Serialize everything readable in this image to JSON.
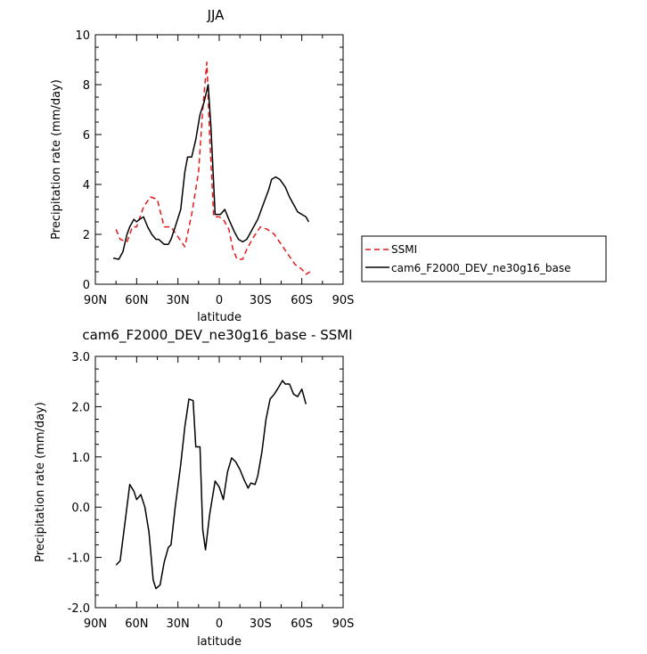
{
  "chart_data": [
    {
      "type": "line",
      "title": "JJA",
      "xlabel": "latitude",
      "ylabel": "Precipitation rate (mm/day)",
      "xlim": [
        90,
        -90
      ],
      "ylim": [
        0,
        10
      ],
      "x_ticks": [
        90,
        60,
        30,
        0,
        -30,
        -60,
        -90
      ],
      "x_tick_labels": [
        "90N",
        "60N",
        "30N",
        "0",
        "30S",
        "60S",
        "90S"
      ],
      "y_ticks": [
        0,
        2,
        4,
        6,
        8,
        10
      ],
      "y_tick_labels": [
        "0",
        "2",
        "4",
        "6",
        "8",
        "10"
      ],
      "grid": false,
      "legend_position": "right",
      "series": [
        {
          "name": "SSMI",
          "color": "#e31a1c",
          "dash": "dashed",
          "points": [
            [
              75,
              2.2
            ],
            [
              72,
              1.8
            ],
            [
              67,
              1.7
            ],
            [
              63,
              2.3
            ],
            [
              60,
              2.3
            ],
            [
              55,
              3.1
            ],
            [
              50,
              3.5
            ],
            [
              45,
              3.4
            ],
            [
              40,
              2.3
            ],
            [
              35,
              2.3
            ],
            [
              30,
              1.9
            ],
            [
              25,
              1.5
            ],
            [
              20,
              2.8
            ],
            [
              15,
              4.5
            ],
            [
              12,
              7.0
            ],
            [
              9,
              8.9
            ],
            [
              7,
              6.0
            ],
            [
              4,
              2.7
            ],
            [
              0,
              2.7
            ],
            [
              -3,
              2.6
            ],
            [
              -7,
              2.2
            ],
            [
              -10,
              1.4
            ],
            [
              -13,
              1.0
            ],
            [
              -17,
              1.0
            ],
            [
              -20,
              1.4
            ],
            [
              -25,
              1.9
            ],
            [
              -30,
              2.3
            ],
            [
              -35,
              2.2
            ],
            [
              -40,
              2.0
            ],
            [
              -45,
              1.6
            ],
            [
              -50,
              1.2
            ],
            [
              -55,
              0.8
            ],
            [
              -60,
              0.6
            ],
            [
              -63,
              0.4
            ],
            [
              -66,
              0.5
            ]
          ]
        },
        {
          "name": "cam6_F2000_DEV_ne30g16_base",
          "color": "#000000",
          "dash": "solid",
          "points": [
            [
              77,
              1.05
            ],
            [
              73,
              1.0
            ],
            [
              70,
              1.3
            ],
            [
              67,
              2.0
            ],
            [
              65,
              2.3
            ],
            [
              62,
              2.6
            ],
            [
              60,
              2.5
            ],
            [
              58,
              2.6
            ],
            [
              55,
              2.7
            ],
            [
              52,
              2.3
            ],
            [
              49,
              2.0
            ],
            [
              46,
              1.8
            ],
            [
              44,
              1.8
            ],
            [
              40,
              1.6
            ],
            [
              37,
              1.6
            ],
            [
              35,
              1.8
            ],
            [
              32,
              2.3
            ],
            [
              28,
              3.0
            ],
            [
              25,
              4.5
            ],
            [
              23,
              5.1
            ],
            [
              20,
              5.1
            ],
            [
              17,
              5.8
            ],
            [
              14,
              6.8
            ],
            [
              11,
              7.3
            ],
            [
              8,
              8.0
            ],
            [
              6,
              6.3
            ],
            [
              3,
              2.8
            ],
            [
              -1,
              2.8
            ],
            [
              -4,
              3.0
            ],
            [
              -7,
              2.6
            ],
            [
              -11,
              2.1
            ],
            [
              -14,
              1.8
            ],
            [
              -17,
              1.7
            ],
            [
              -20,
              1.8
            ],
            [
              -24,
              2.2
            ],
            [
              -28,
              2.6
            ],
            [
              -32,
              3.2
            ],
            [
              -36,
              3.8
            ],
            [
              -38,
              4.2
            ],
            [
              -41,
              4.3
            ],
            [
              -44,
              4.2
            ],
            [
              -48,
              3.9
            ],
            [
              -51,
              3.5
            ],
            [
              -54,
              3.2
            ],
            [
              -57,
              2.9
            ],
            [
              -60,
              2.8
            ],
            [
              -63,
              2.7
            ],
            [
              -65,
              2.5
            ]
          ]
        }
      ]
    },
    {
      "type": "line",
      "title": "cam6_F2000_DEV_ne30g16_base - SSMI",
      "xlabel": "latitude",
      "ylabel": "Precipitation rate (mm/day)",
      "xlim": [
        90,
        -90
      ],
      "ylim": [
        -2,
        3
      ],
      "x_ticks": [
        90,
        60,
        30,
        0,
        -30,
        -60,
        -90
      ],
      "x_tick_labels": [
        "90N",
        "60N",
        "30N",
        "0",
        "30S",
        "60S",
        "90S"
      ],
      "y_ticks": [
        -2,
        -1,
        0,
        1,
        2,
        3
      ],
      "y_tick_labels": [
        "-2.0",
        "-1.0",
        "0.0",
        "1.0",
        "2.0",
        "3.0"
      ],
      "grid": false,
      "series": [
        {
          "color": "#000000",
          "dash": "solid",
          "points": [
            [
              75,
              -1.15
            ],
            [
              72,
              -1.07
            ],
            [
              68,
              -0.2
            ],
            [
              65,
              0.45
            ],
            [
              62,
              0.32
            ],
            [
              60,
              0.15
            ],
            [
              57,
              0.25
            ],
            [
              54,
              0.0
            ],
            [
              51,
              -0.5
            ],
            [
              48,
              -1.45
            ],
            [
              46,
              -1.62
            ],
            [
              43,
              -1.55
            ],
            [
              40,
              -1.1
            ],
            [
              37,
              -0.8
            ],
            [
              35,
              -0.75
            ],
            [
              32,
              0.0
            ],
            [
              28,
              0.85
            ],
            [
              25,
              1.6
            ],
            [
              22,
              2.15
            ],
            [
              19,
              2.12
            ],
            [
              17,
              1.2
            ],
            [
              14,
              1.2
            ],
            [
              12,
              -0.45
            ],
            [
              10,
              -0.85
            ],
            [
              7,
              -0.15
            ],
            [
              3,
              0.52
            ],
            [
              0,
              0.4
            ],
            [
              -3,
              0.15
            ],
            [
              -6,
              0.7
            ],
            [
              -9,
              0.98
            ],
            [
              -12,
              0.9
            ],
            [
              -15,
              0.75
            ],
            [
              -18,
              0.55
            ],
            [
              -21,
              0.38
            ],
            [
              -23,
              0.48
            ],
            [
              -26,
              0.45
            ],
            [
              -28,
              0.62
            ],
            [
              -31,
              1.1
            ],
            [
              -34,
              1.75
            ],
            [
              -37,
              2.15
            ],
            [
              -40,
              2.25
            ],
            [
              -43,
              2.38
            ],
            [
              -46,
              2.52
            ],
            [
              -48,
              2.45
            ],
            [
              -51,
              2.45
            ],
            [
              -54,
              2.25
            ],
            [
              -57,
              2.2
            ],
            [
              -60,
              2.35
            ],
            [
              -63,
              2.05
            ]
          ]
        }
      ]
    }
  ]
}
